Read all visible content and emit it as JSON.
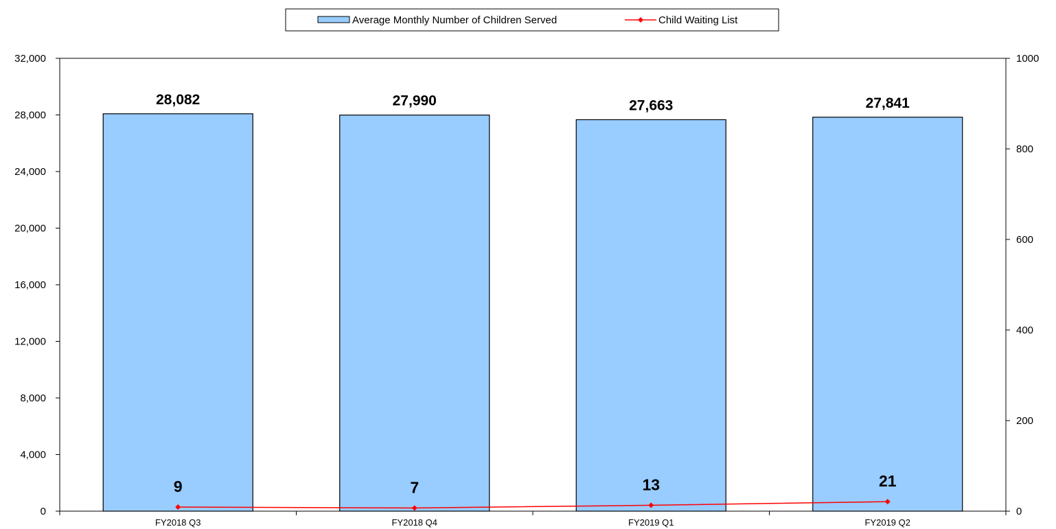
{
  "chart_data": {
    "type": "bar",
    "categories": [
      "FY2018 Q3",
      "FY2018 Q4",
      "FY2019 Q1",
      "FY2019 Q2"
    ],
    "series": [
      {
        "name": "Average Monthly Number of Children Served",
        "type": "bar",
        "axis": "left",
        "values": [
          28082,
          27990,
          27663,
          27841
        ],
        "labels": [
          "28,082",
          "27,990",
          "27,663",
          "27,841"
        ],
        "color": "#99CCFF"
      },
      {
        "name": "Child Waiting List",
        "type": "line",
        "axis": "right",
        "values": [
          9,
          7,
          13,
          21
        ],
        "labels": [
          "9",
          "7",
          "13",
          "21"
        ],
        "color": "#FF0000"
      }
    ],
    "y_left": {
      "ylim": [
        0,
        32000
      ],
      "ticks": [
        0,
        4000,
        8000,
        12000,
        16000,
        20000,
        24000,
        28000,
        32000
      ],
      "tick_labels": [
        "0",
        "4,000",
        "8,000",
        "12,000",
        "16,000",
        "20,000",
        "24,000",
        "28,000",
        "32,000"
      ]
    },
    "y_right": {
      "ylim": [
        0,
        1000
      ],
      "ticks": [
        0,
        200,
        400,
        600,
        800,
        1000
      ],
      "tick_labels": [
        "0",
        "200",
        "400",
        "600",
        "800",
        "1000"
      ]
    },
    "title": "",
    "xlabel": "",
    "ylabel": "",
    "grid": false,
    "legend": "top-center"
  }
}
